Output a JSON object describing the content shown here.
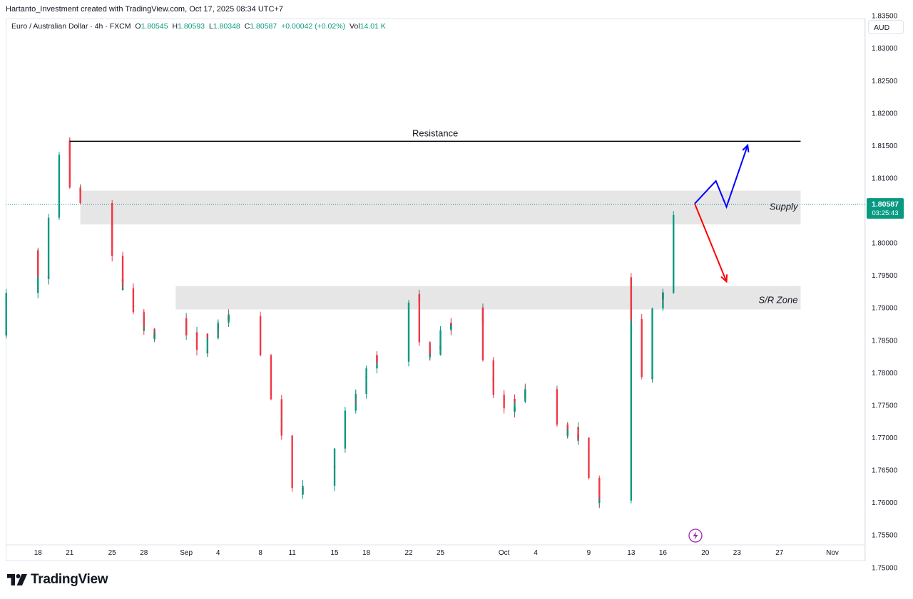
{
  "attribution": "Hartanto_Investment created with TradingView.com, Oct 17, 2025 08:34 UTC+7",
  "symbol": {
    "name": "Euro / Australian Dollar · 4h · FXCM",
    "o_label": "O",
    "o": "1.80545",
    "h_label": "H",
    "h": "1.80593",
    "l_label": "L",
    "l": "1.80348",
    "c_label": "C",
    "c": "1.80587",
    "change": "+0.00042 (+0.02%)",
    "vol_label": "Vol",
    "vol": "14.01 K"
  },
  "currency": "AUD",
  "price_label": {
    "price": "1.80587",
    "countdown": "03:25:43",
    "color": "#089981"
  },
  "brand": "TradingView",
  "colors": {
    "up": "#089981",
    "down": "#f23645",
    "zone": "#e6e6e6",
    "bull_arrow": "#0000ff",
    "bear_arrow": "#ff0000"
  },
  "chart_data": {
    "type": "candlestick",
    "interval": "4h",
    "ylim": [
      1.75,
      1.836
    ],
    "y_ticks": [
      "1.83500",
      "1.83000",
      "1.82500",
      "1.82000",
      "1.81500",
      "1.81000",
      "1.80500",
      "1.80000",
      "1.79500",
      "1.79000",
      "1.78500",
      "1.78000",
      "1.77500",
      "1.77000",
      "1.76500",
      "1.76000",
      "1.75500",
      "1.75000"
    ],
    "x_ticks": [
      "18",
      "21",
      "25",
      "28",
      "Sep",
      "4",
      "8",
      "11",
      "15",
      "18",
      "22",
      "25",
      "Oct",
      "4",
      "9",
      "13",
      "16",
      "20",
      "23",
      "27",
      "Nov"
    ],
    "last_price": 1.80587,
    "price_path": [
      {
        "date": "Aug 15",
        "price": 1.7865
      },
      {
        "date": "Aug 16",
        "price": 1.793
      },
      {
        "date": "Aug 18",
        "price": 1.7985
      },
      {
        "date": "Aug 19",
        "price": 1.7945
      },
      {
        "date": "Aug 20",
        "price": 1.806
      },
      {
        "date": "Aug 21",
        "price": 1.815
      },
      {
        "date": "Aug 22",
        "price": 1.808
      },
      {
        "date": "Aug 25",
        "price": 1.804
      },
      {
        "date": "Aug 26",
        "price": 1.796
      },
      {
        "date": "Aug 27",
        "price": 1.792
      },
      {
        "date": "Aug 28",
        "price": 1.7885
      },
      {
        "date": "Aug 29",
        "price": 1.7855
      },
      {
        "date": "Sep 1",
        "price": 1.788
      },
      {
        "date": "Sep 2",
        "price": 1.786
      },
      {
        "date": "Sep 3",
        "price": 1.7835
      },
      {
        "date": "Sep 4",
        "price": 1.786
      },
      {
        "date": "Sep 5",
        "price": 1.788
      },
      {
        "date": "Sep 8",
        "price": 1.789
      },
      {
        "date": "Sep 9",
        "price": 1.7815
      },
      {
        "date": "Sep 10",
        "price": 1.774
      },
      {
        "date": "Sep 11",
        "price": 1.769
      },
      {
        "date": "Sep 12",
        "price": 1.761
      },
      {
        "date": "Sep 15",
        "price": 1.764
      },
      {
        "date": "Sep 16",
        "price": 1.77
      },
      {
        "date": "Sep 17",
        "price": 1.7745
      },
      {
        "date": "Sep 18",
        "price": 1.778
      },
      {
        "date": "Sep 19",
        "price": 1.7815
      },
      {
        "date": "Sep 22",
        "price": 1.784
      },
      {
        "date": "Sep 23",
        "price": 1.792
      },
      {
        "date": "Sep 24",
        "price": 1.783
      },
      {
        "date": "Sep 25",
        "price": 1.783
      },
      {
        "date": "Sep 26",
        "price": 1.7865
      },
      {
        "date": "Sep 29",
        "price": 1.7895
      },
      {
        "date": "Sep 30",
        "price": 1.78
      },
      {
        "date": "Oct 1",
        "price": 1.776
      },
      {
        "date": "Oct 2",
        "price": 1.774
      },
      {
        "date": "Oct 3",
        "price": 1.7765
      },
      {
        "date": "Oct 6",
        "price": 1.778
      },
      {
        "date": "Oct 7",
        "price": 1.77
      },
      {
        "date": "Oct 8",
        "price": 1.7715
      },
      {
        "date": "Oct 9",
        "price": 1.769
      },
      {
        "date": "Oct 10",
        "price": 1.762
      },
      {
        "date": "Oct 11",
        "price": 1.7595
      },
      {
        "date": "Oct 13",
        "price": 1.794
      },
      {
        "date": "Oct 14",
        "price": 1.788
      },
      {
        "date": "Oct 15",
        "price": 1.7785
      },
      {
        "date": "Oct 16",
        "price": 1.792
      },
      {
        "date": "Oct 17",
        "price": 1.792
      },
      {
        "date": "Oct 18",
        "price": 1.8059
      }
    ],
    "annotations": {
      "resistance": {
        "label": "Resistance",
        "price": 1.8156,
        "from": "Aug 21",
        "to": "Oct 29"
      },
      "supply": {
        "label": "Supply",
        "top": 1.808,
        "bottom": 1.8028,
        "from": "Aug 22",
        "to": "Oct 29"
      },
      "sr_zone": {
        "label": "S/R Zone",
        "top": 1.7933,
        "bottom": 1.7897,
        "from": "Aug 31",
        "to": "Oct 29"
      },
      "bullish_path": [
        {
          "date": "Oct 19",
          "price": 1.806
        },
        {
          "date": "Oct 21",
          "price": 1.8095
        },
        {
          "date": "Oct 22",
          "price": 1.8055
        },
        {
          "date": "Oct 24",
          "price": 1.815
        }
      ],
      "bearish_path": [
        {
          "date": "Oct 19",
          "price": 1.806
        },
        {
          "date": "Oct 22",
          "price": 1.794
        }
      ]
    }
  }
}
